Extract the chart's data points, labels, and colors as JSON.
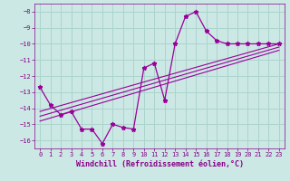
{
  "xlabel": "Windchill (Refroidissement éolien,°C)",
  "ylabel": "",
  "background_color": "#cce8e4",
  "grid_color": "#aad4cc",
  "line_color": "#990099",
  "xlim": [
    -0.5,
    23.5
  ],
  "ylim": [
    -16.5,
    -7.5
  ],
  "xticks": [
    0,
    1,
    2,
    3,
    4,
    5,
    6,
    7,
    8,
    9,
    10,
    11,
    12,
    13,
    14,
    15,
    16,
    17,
    18,
    19,
    20,
    21,
    22,
    23
  ],
  "yticks": [
    -8,
    -9,
    -10,
    -11,
    -12,
    -13,
    -14,
    -15,
    -16
  ],
  "main_line_x": [
    0,
    1,
    2,
    3,
    4,
    5,
    6,
    7,
    8,
    9,
    10,
    11,
    12,
    13,
    14,
    15,
    16,
    17,
    18,
    19,
    20,
    21,
    22,
    23
  ],
  "main_line_y": [
    -12.7,
    -13.8,
    -14.4,
    -14.2,
    -15.3,
    -15.3,
    -16.2,
    -15.0,
    -15.2,
    -15.3,
    -11.5,
    -11.2,
    -13.5,
    -10.0,
    -8.3,
    -8.0,
    -9.2,
    -9.8,
    -10.0,
    -10.0,
    -10.0,
    -10.0,
    -10.0,
    -10.0
  ],
  "reg_lines": [
    {
      "x": [
        0,
        23
      ],
      "y": [
        -14.2,
        -10.0
      ]
    },
    {
      "x": [
        0,
        23
      ],
      "y": [
        -14.5,
        -10.2
      ]
    },
    {
      "x": [
        0,
        23
      ],
      "y": [
        -14.8,
        -10.4
      ]
    }
  ],
  "font_color": "#880088",
  "tick_fontsize": 5.0,
  "label_fontsize": 6.0
}
